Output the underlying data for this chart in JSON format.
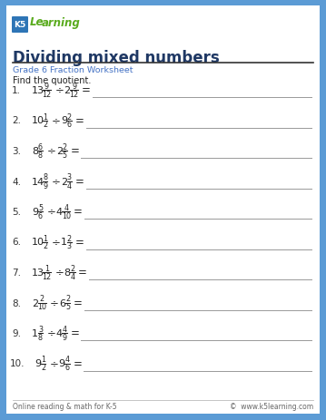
{
  "title": "Dividing mixed numbers",
  "subtitle": "Grade 6 Fraction Worksheet",
  "instruction": "Find the quotient.",
  "border_color": "#5b9bd5",
  "title_color": "#1f3864",
  "subtitle_color": "#4472c4",
  "text_color": "#222222",
  "footer_left": "Online reading & math for K-5",
  "footer_right": "©  www.k5learning.com",
  "problems": [
    {
      "num": "1.",
      "whole1": "13",
      "num1": "9",
      "den1": "12",
      "whole2": "2",
      "num2": "9",
      "den2": "12"
    },
    {
      "num": "2.",
      "whole1": "10",
      "num1": "1",
      "den1": "2",
      "whole2": "9",
      "num2": "2",
      "den2": "6"
    },
    {
      "num": "3.",
      "whole1": "8",
      "num1": "6",
      "den1": "8",
      "whole2": "2",
      "num2": "2",
      "den2": "5"
    },
    {
      "num": "4.",
      "whole1": "14",
      "num1": "8",
      "den1": "9",
      "whole2": "2",
      "num2": "3",
      "den2": "4"
    },
    {
      "num": "5.",
      "whole1": "9",
      "num1": "5",
      "den1": "6",
      "whole2": "4",
      "num2": "4",
      "den2": "10"
    },
    {
      "num": "6.",
      "whole1": "10",
      "num1": "1",
      "den1": "2",
      "whole2": "1",
      "num2": "2",
      "den2": "3"
    },
    {
      "num": "7.",
      "whole1": "13",
      "num1": "1",
      "den1": "12",
      "whole2": "8",
      "num2": "2",
      "den2": "4"
    },
    {
      "num": "8.",
      "whole1": "2",
      "num1": "2",
      "den1": "10",
      "whole2": "6",
      "num2": "2",
      "den2": "5"
    },
    {
      "num": "9.",
      "whole1": "1",
      "num1": "3",
      "den1": "8",
      "whole2": "4",
      "num2": "4",
      "den2": "9"
    },
    {
      "num": "10.",
      "whole1": "9",
      "num1": "1",
      "den1": "2",
      "whole2": "9",
      "num2": "4",
      "den2": "6"
    }
  ],
  "logo_k5_color": "#2e75b6",
  "logo_learning_color": "#5aab1e",
  "border_width": 7,
  "content_bg": "#ffffff",
  "line_color": "#222222",
  "answer_line_color": "#999999",
  "problem_num_color": "#333333",
  "frac_color": "#222222"
}
